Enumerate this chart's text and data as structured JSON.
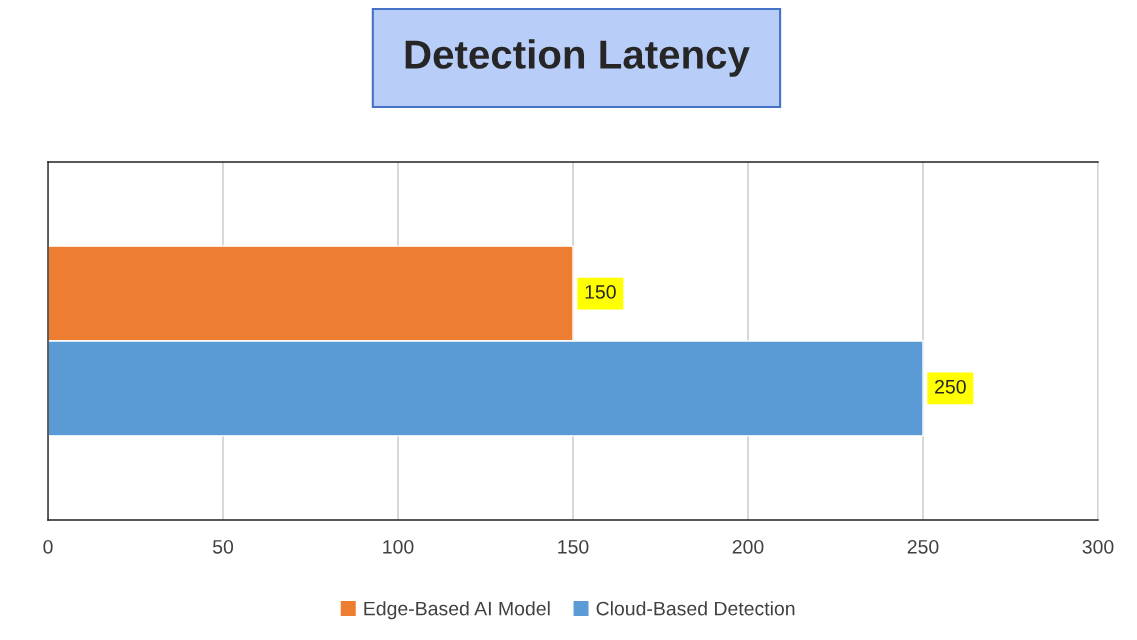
{
  "chart_data": {
    "type": "bar",
    "title": "Detection Latency",
    "orientation": "horizontal",
    "categories": [
      null
    ],
    "series": [
      {
        "name": "Edge-Based AI Model",
        "color": "#ed7d31",
        "values": [
          150
        ]
      },
      {
        "name": "Cloud-Based Detection",
        "color": "#5b9bd5",
        "values": [
          250
        ]
      }
    ],
    "xlim": [
      0,
      300
    ],
    "xticks": [
      0,
      50,
      100,
      150,
      200,
      250,
      300
    ],
    "grid": "x",
    "legend": "bottom",
    "data_labels": true
  }
}
